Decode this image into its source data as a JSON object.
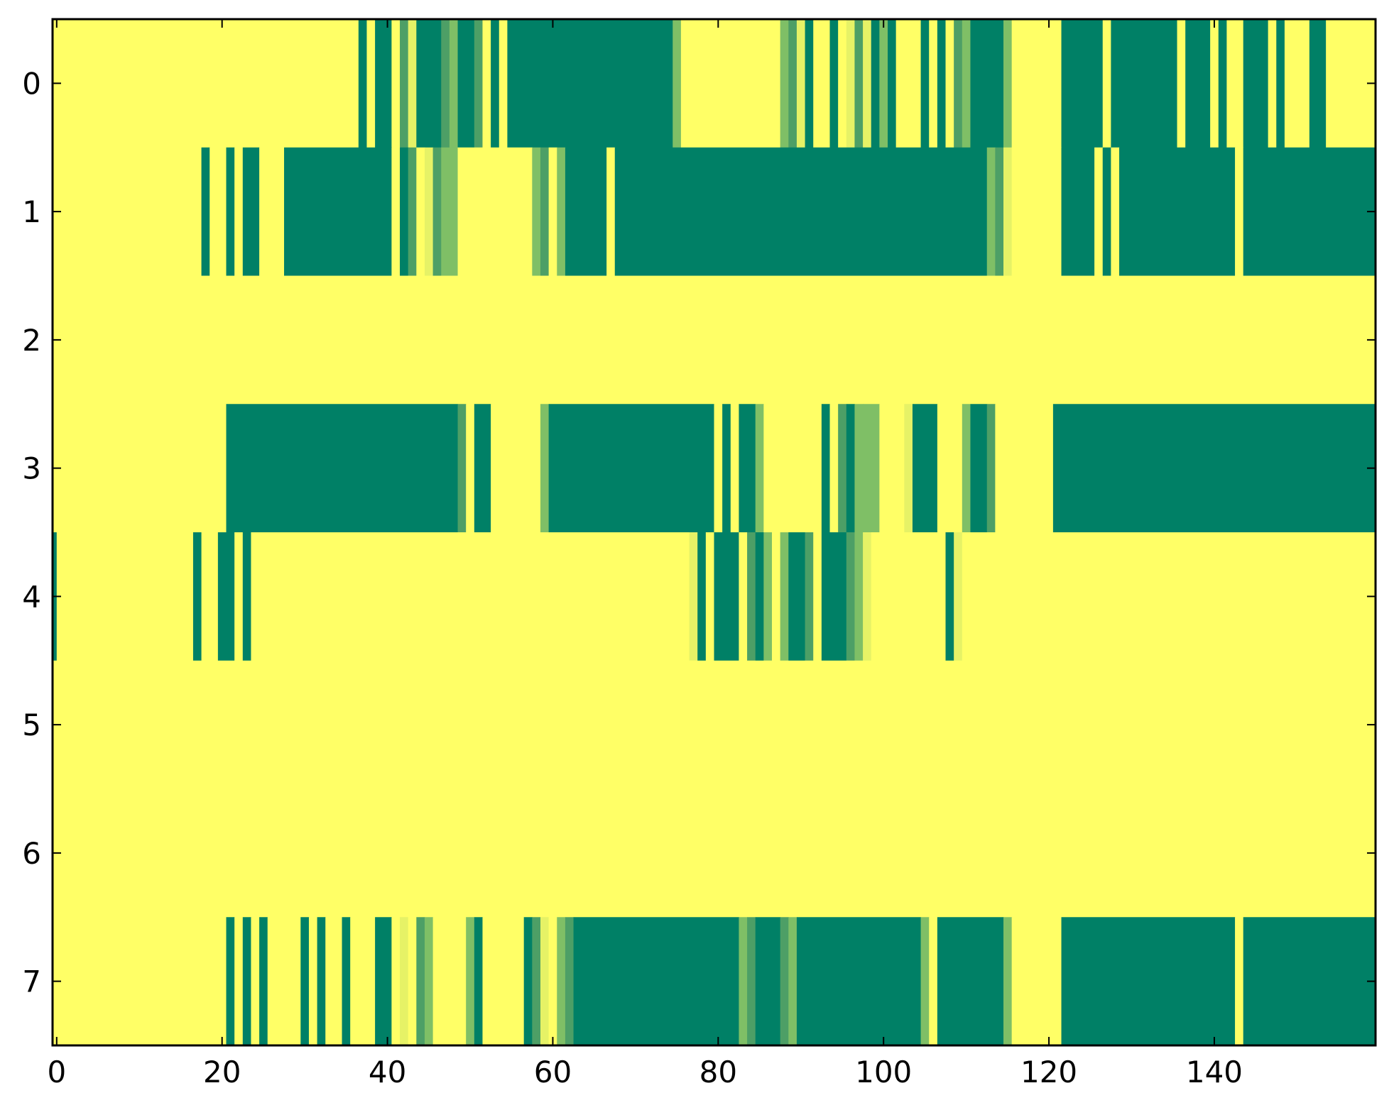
{
  "chart_data": {
    "type": "heatmap",
    "title": "",
    "xlabel": "",
    "ylabel": "",
    "x_range": [
      -0.5,
      159.5
    ],
    "y_range": [
      -0.5,
      7.5
    ],
    "x_ticks": [
      0,
      20,
      40,
      60,
      80,
      100,
      120,
      140
    ],
    "y_ticks": [
      0,
      1,
      2,
      3,
      4,
      5,
      6,
      7
    ],
    "grid": false,
    "colormap": [
      "#ffff66",
      "#e6f266",
      "#7fbf66",
      "#4d9f66",
      "#008066"
    ],
    "rows": [
      {
        "row": 0,
        "segments": [
          [
            0,
            37,
            0
          ],
          [
            37,
            38,
            4
          ],
          [
            38,
            39,
            0
          ],
          [
            39,
            41,
            4
          ],
          [
            41,
            42,
            0
          ],
          [
            42,
            43,
            3
          ],
          [
            43,
            44,
            1
          ],
          [
            44,
            45,
            4
          ],
          [
            45,
            47,
            4
          ],
          [
            47,
            48,
            3
          ],
          [
            48,
            49,
            2
          ],
          [
            49,
            51,
            4
          ],
          [
            51,
            52,
            3
          ],
          [
            52,
            53,
            0
          ],
          [
            53,
            54,
            4
          ],
          [
            54,
            55,
            0
          ],
          [
            55,
            75,
            4
          ],
          [
            75,
            76,
            2
          ],
          [
            76,
            88,
            0
          ],
          [
            88,
            89,
            2
          ],
          [
            89,
            90,
            3
          ],
          [
            90,
            91,
            1
          ],
          [
            91,
            92,
            4
          ],
          [
            92,
            94,
            0
          ],
          [
            94,
            95,
            4
          ],
          [
            95,
            96,
            0
          ],
          [
            96,
            97,
            1
          ],
          [
            97,
            98,
            3
          ],
          [
            98,
            99,
            1
          ],
          [
            99,
            100,
            4
          ],
          [
            100,
            101,
            2
          ],
          [
            101,
            102,
            4
          ],
          [
            102,
            105,
            0
          ],
          [
            105,
            106,
            4
          ],
          [
            106,
            107,
            0
          ],
          [
            107,
            108,
            4
          ],
          [
            108,
            109,
            0
          ],
          [
            109,
            110,
            3
          ],
          [
            110,
            111,
            2
          ],
          [
            111,
            115,
            4
          ],
          [
            115,
            116,
            2
          ],
          [
            116,
            122,
            0
          ],
          [
            122,
            127,
            4
          ],
          [
            127,
            128,
            0
          ],
          [
            128,
            136,
            4
          ],
          [
            136,
            137,
            0
          ],
          [
            137,
            140,
            4
          ],
          [
            140,
            141,
            0
          ],
          [
            141,
            142,
            4
          ],
          [
            142,
            144,
            0
          ],
          [
            144,
            147,
            4
          ],
          [
            147,
            148,
            0
          ],
          [
            148,
            149,
            4
          ],
          [
            149,
            152,
            0
          ],
          [
            152,
            154,
            4
          ],
          [
            154,
            160,
            0
          ]
        ]
      },
      {
        "row": 1,
        "segments": [
          [
            0,
            18,
            0
          ],
          [
            18,
            19,
            4
          ],
          [
            19,
            21,
            0
          ],
          [
            21,
            22,
            4
          ],
          [
            22,
            23,
            0
          ],
          [
            23,
            25,
            4
          ],
          [
            25,
            28,
            0
          ],
          [
            28,
            41,
            4
          ],
          [
            41,
            42,
            0
          ],
          [
            42,
            43,
            4
          ],
          [
            43,
            44,
            3
          ],
          [
            44,
            45,
            0
          ],
          [
            45,
            46,
            1
          ],
          [
            46,
            47,
            3
          ],
          [
            47,
            49,
            2
          ],
          [
            49,
            58,
            0
          ],
          [
            58,
            59,
            2
          ],
          [
            59,
            60,
            3
          ],
          [
            60,
            61,
            0
          ],
          [
            61,
            62,
            2
          ],
          [
            62,
            67,
            4
          ],
          [
            67,
            68,
            0
          ],
          [
            68,
            113,
            4
          ],
          [
            113,
            114,
            2
          ],
          [
            114,
            115,
            3
          ],
          [
            115,
            116,
            1
          ],
          [
            116,
            122,
            0
          ],
          [
            122,
            126,
            4
          ],
          [
            126,
            127,
            0
          ],
          [
            127,
            128,
            4
          ],
          [
            128,
            129,
            0
          ],
          [
            129,
            143,
            4
          ],
          [
            143,
            144,
            0
          ],
          [
            144,
            160,
            4
          ]
        ]
      },
      {
        "row": 2,
        "segments": [
          [
            0,
            160,
            0
          ]
        ]
      },
      {
        "row": 3,
        "segments": [
          [
            0,
            21,
            0
          ],
          [
            21,
            49,
            4
          ],
          [
            49,
            50,
            3
          ],
          [
            50,
            51,
            0
          ],
          [
            51,
            53,
            4
          ],
          [
            53,
            59,
            0
          ],
          [
            59,
            60,
            2
          ],
          [
            60,
            80,
            4
          ],
          [
            80,
            81,
            0
          ],
          [
            81,
            82,
            4
          ],
          [
            82,
            83,
            0
          ],
          [
            83,
            85,
            4
          ],
          [
            85,
            86,
            2
          ],
          [
            86,
            93,
            0
          ],
          [
            93,
            94,
            4
          ],
          [
            94,
            95,
            0
          ],
          [
            95,
            96,
            3
          ],
          [
            96,
            97,
            4
          ],
          [
            97,
            98,
            2
          ],
          [
            98,
            100,
            2
          ],
          [
            100,
            103,
            0
          ],
          [
            103,
            104,
            1
          ],
          [
            104,
            107,
            4
          ],
          [
            107,
            110,
            0
          ],
          [
            110,
            111,
            2
          ],
          [
            111,
            113,
            4
          ],
          [
            113,
            114,
            3
          ],
          [
            114,
            121,
            0
          ],
          [
            121,
            160,
            4
          ]
        ]
      },
      {
        "row": 4,
        "segments": [
          [
            -0.5,
            0.5,
            4
          ],
          [
            0.5,
            17,
            0
          ],
          [
            17,
            18,
            4
          ],
          [
            18,
            20,
            0
          ],
          [
            20,
            22,
            4
          ],
          [
            22,
            23,
            0
          ],
          [
            23,
            24,
            4
          ],
          [
            24,
            77,
            0
          ],
          [
            77,
            78,
            1
          ],
          [
            78,
            79,
            4
          ],
          [
            79,
            80,
            0
          ],
          [
            80,
            83,
            4
          ],
          [
            83,
            84,
            0
          ],
          [
            84,
            85,
            3
          ],
          [
            85,
            86,
            4
          ],
          [
            86,
            87,
            2
          ],
          [
            87,
            88,
            0
          ],
          [
            88,
            89,
            2
          ],
          [
            89,
            91,
            4
          ],
          [
            91,
            92,
            3
          ],
          [
            92,
            93,
            0
          ],
          [
            93,
            96,
            4
          ],
          [
            96,
            97,
            3
          ],
          [
            97,
            98,
            2
          ],
          [
            98,
            99,
            1
          ],
          [
            99,
            108,
            0
          ],
          [
            108,
            109,
            4
          ],
          [
            109,
            110,
            1
          ],
          [
            110,
            160,
            0
          ]
        ]
      },
      {
        "row": 5,
        "segments": [
          [
            0,
            160,
            0
          ]
        ]
      },
      {
        "row": 6,
        "segments": [
          [
            0,
            160,
            0
          ]
        ]
      },
      {
        "row": 7,
        "segments": [
          [
            0,
            21,
            0
          ],
          [
            21,
            22,
            4
          ],
          [
            22,
            23,
            0
          ],
          [
            23,
            24,
            4
          ],
          [
            24,
            25,
            0
          ],
          [
            25,
            26,
            4
          ],
          [
            26,
            30,
            0
          ],
          [
            30,
            31,
            4
          ],
          [
            31,
            32,
            0
          ],
          [
            32,
            33,
            4
          ],
          [
            33,
            35,
            0
          ],
          [
            35,
            36,
            4
          ],
          [
            36,
            39,
            0
          ],
          [
            39,
            41,
            4
          ],
          [
            41,
            42,
            0
          ],
          [
            42,
            43,
            1
          ],
          [
            43,
            44,
            0
          ],
          [
            44,
            45,
            3
          ],
          [
            45,
            46,
            2
          ],
          [
            46,
            50,
            0
          ],
          [
            50,
            51,
            2
          ],
          [
            51,
            52,
            4
          ],
          [
            52,
            57,
            0
          ],
          [
            57,
            58,
            4
          ],
          [
            58,
            59,
            3
          ],
          [
            59,
            60,
            1
          ],
          [
            60,
            61,
            0
          ],
          [
            61,
            62,
            2
          ],
          [
            62,
            63,
            3
          ],
          [
            63,
            83,
            4
          ],
          [
            83,
            84,
            2
          ],
          [
            84,
            85,
            3
          ],
          [
            85,
            88,
            4
          ],
          [
            88,
            89,
            3
          ],
          [
            89,
            90,
            2
          ],
          [
            90,
            105,
            4
          ],
          [
            105,
            106,
            2
          ],
          [
            106,
            107,
            0
          ],
          [
            107,
            115,
            4
          ],
          [
            115,
            116,
            2
          ],
          [
            116,
            122,
            0
          ],
          [
            122,
            143,
            4
          ],
          [
            143,
            144,
            0
          ],
          [
            144,
            160,
            4
          ]
        ]
      }
    ]
  }
}
